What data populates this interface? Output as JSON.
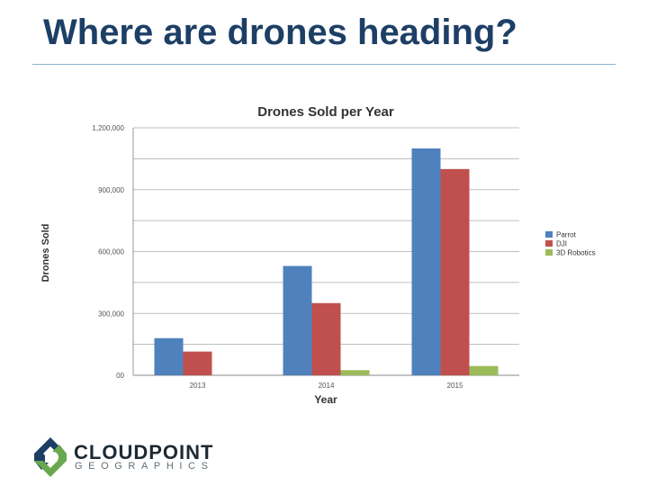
{
  "slide": {
    "title": "Where are drones heading?"
  },
  "logo": {
    "name": "CLOUDPOINT",
    "subtitle": "GEOGRAPHICS"
  },
  "chart_data": {
    "type": "bar",
    "title": "Drones Sold per Year",
    "xlabel": "Year",
    "ylabel": "Drones Sold",
    "categories": [
      "2013",
      "2014",
      "2015"
    ],
    "ylim": [
      0,
      1200000
    ],
    "yticks": [
      0,
      300000,
      600000,
      900000,
      1200000
    ],
    "ytick_labels": [
      "00",
      "300,000",
      "600,000",
      "900,000",
      "1,200,000"
    ],
    "grid": true,
    "legend_position": "right",
    "series": [
      {
        "name": "Parrot",
        "color": "#4f81bd",
        "values": [
          180000,
          530000,
          1100000
        ]
      },
      {
        "name": "DJI",
        "color": "#c0504d",
        "values": [
          115000,
          350000,
          1000000
        ]
      },
      {
        "name": "3D Robotics",
        "color": "#9bbb59",
        "values": [
          0,
          25000,
          45000
        ]
      }
    ]
  }
}
